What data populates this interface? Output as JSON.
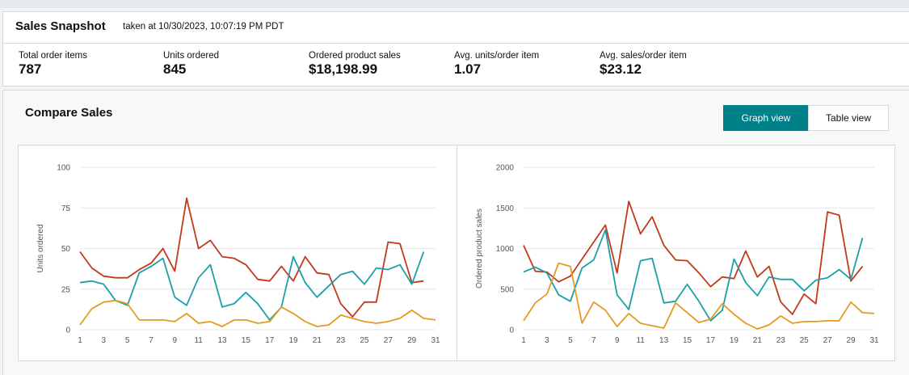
{
  "snapshot": {
    "title": "Sales Snapshot",
    "timestamp": "taken at 10/30/2023, 10:07:19 PM PDT",
    "metrics": [
      {
        "label": "Total order items",
        "value": "787"
      },
      {
        "label": "Units ordered",
        "value": "845"
      },
      {
        "label": "Ordered product sales",
        "value": "$18,198.99"
      },
      {
        "label": "Avg. units/order item",
        "value": "1.07"
      },
      {
        "label": "Avg. sales/order item",
        "value": "$23.12"
      }
    ]
  },
  "compare": {
    "title": "Compare Sales",
    "graph_view_label": "Graph view",
    "table_view_label": "Table view",
    "active_view": "graph"
  },
  "colors": {
    "red": "#c2391b",
    "teal": "#1b9fa9",
    "orange": "#e59b22"
  },
  "chart_data": [
    {
      "type": "line",
      "ylabel": "Units ordered",
      "ylim": [
        0,
        100
      ],
      "yticks": [
        0,
        25,
        50,
        75,
        100
      ],
      "x": [
        1,
        2,
        3,
        4,
        5,
        6,
        7,
        8,
        9,
        10,
        11,
        12,
        13,
        14,
        15,
        16,
        17,
        18,
        19,
        20,
        21,
        22,
        23,
        24,
        25,
        26,
        27,
        28,
        29,
        30,
        31
      ],
      "xticks": [
        1,
        3,
        5,
        7,
        9,
        11,
        13,
        15,
        17,
        19,
        21,
        23,
        25,
        27,
        29,
        31
      ],
      "grid": true,
      "series": [
        {
          "color": "red",
          "values": [
            48,
            38,
            33,
            32,
            32,
            37,
            41,
            50,
            36,
            81,
            50,
            55,
            45,
            44,
            40,
            31,
            30,
            39,
            30,
            45,
            35,
            34,
            16,
            8,
            17,
            17,
            54,
            53,
            29,
            30,
            null
          ]
        },
        {
          "color": "teal",
          "values": [
            29,
            30,
            28,
            18,
            15,
            35,
            39,
            44,
            20,
            15,
            32,
            40,
            14,
            16,
            23,
            16,
            6,
            14,
            45,
            29,
            20,
            27,
            34,
            36,
            28,
            38,
            37,
            40,
            28,
            48,
            null
          ]
        },
        {
          "color": "orange",
          "values": [
            3,
            13,
            17,
            18,
            16,
            6,
            6,
            6,
            5,
            10,
            4,
            5,
            2,
            6,
            6,
            4,
            5,
            14,
            10,
            5,
            2,
            3,
            9,
            7,
            5,
            4,
            5,
            7,
            12,
            7,
            6
          ]
        }
      ]
    },
    {
      "type": "line",
      "ylabel": "Ordered product sales",
      "ylim": [
        0,
        2000
      ],
      "yticks": [
        0,
        500,
        1000,
        1500,
        2000
      ],
      "x": [
        1,
        2,
        3,
        4,
        5,
        6,
        7,
        8,
        9,
        10,
        11,
        12,
        13,
        14,
        15,
        16,
        17,
        18,
        19,
        20,
        21,
        22,
        23,
        24,
        25,
        26,
        27,
        28,
        29,
        30,
        31
      ],
      "xticks": [
        1,
        3,
        5,
        7,
        9,
        11,
        13,
        15,
        17,
        19,
        21,
        23,
        25,
        27,
        29,
        31
      ],
      "grid": true,
      "series": [
        {
          "color": "red",
          "values": [
            1040,
            720,
            710,
            590,
            660,
            870,
            1080,
            1290,
            700,
            1580,
            1180,
            1390,
            1040,
            860,
            850,
            700,
            530,
            650,
            630,
            970,
            650,
            780,
            340,
            190,
            440,
            320,
            1450,
            1410,
            600,
            780,
            null
          ]
        },
        {
          "color": "teal",
          "values": [
            710,
            770,
            700,
            430,
            350,
            760,
            860,
            1230,
            430,
            250,
            850,
            880,
            330,
            350,
            560,
            350,
            110,
            240,
            870,
            580,
            420,
            650,
            620,
            620,
            480,
            610,
            640,
            740,
            620,
            1130,
            null
          ]
        },
        {
          "color": "orange",
          "values": [
            110,
            330,
            440,
            820,
            780,
            80,
            340,
            240,
            40,
            200,
            80,
            50,
            20,
            330,
            210,
            90,
            130,
            320,
            190,
            80,
            10,
            60,
            170,
            80,
            100,
            100,
            110,
            110,
            340,
            210,
            200
          ]
        }
      ]
    }
  ]
}
